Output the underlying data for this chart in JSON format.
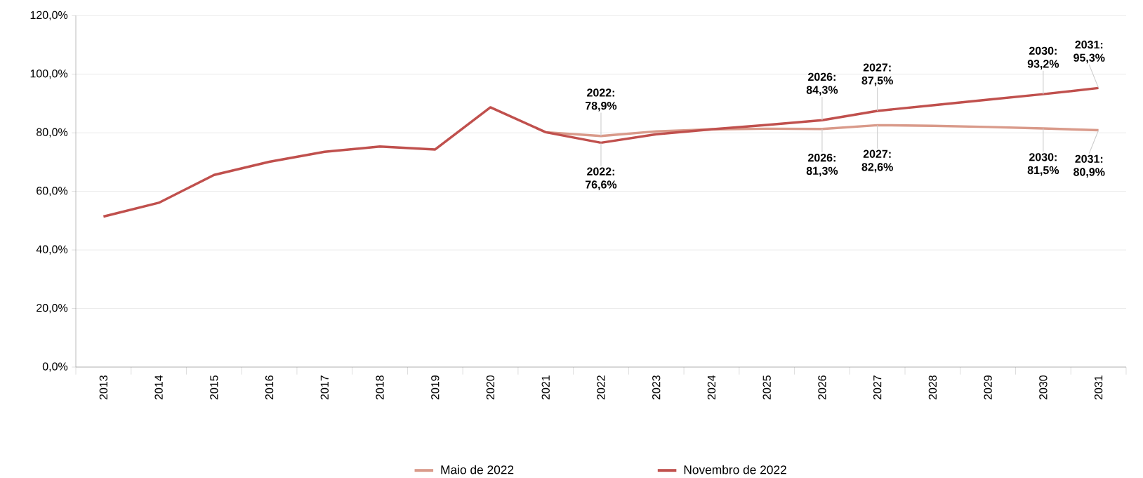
{
  "chart_data": {
    "type": "line",
    "categories": [
      "2013",
      "2014",
      "2015",
      "2016",
      "2017",
      "2018",
      "2019",
      "2020",
      "2021",
      "2022",
      "2023",
      "2024",
      "2025",
      "2026",
      "2027",
      "2028",
      "2029",
      "2030",
      "2031"
    ],
    "ylim": [
      0,
      120
    ],
    "yticks": [
      {
        "value": 0,
        "label": "0,0%"
      },
      {
        "value": 20,
        "label": "20,0%"
      },
      {
        "value": 40,
        "label": "40,0%"
      },
      {
        "value": 60,
        "label": "60,0%"
      },
      {
        "value": 80,
        "label": "80,0%"
      },
      {
        "value": 100,
        "label": "100,0%"
      },
      {
        "value": 120,
        "label": "120,0%"
      }
    ],
    "grid": "y",
    "legend": "bottom",
    "marker": "none",
    "line_style": "solid",
    "series": [
      {
        "name": "Maio de 2022",
        "color": "#d99a8a",
        "values": [
          null,
          null,
          null,
          null,
          null,
          null,
          null,
          null,
          80.2,
          78.9,
          80.5,
          81.2,
          81.4,
          81.3,
          82.6,
          82.4,
          82.0,
          81.5,
          80.9
        ]
      },
      {
        "name": "Novembro de 2022",
        "color": "#c0504d",
        "values": [
          51.4,
          56.1,
          65.6,
          70.1,
          73.5,
          75.3,
          74.3,
          88.7,
          80.2,
          76.6,
          79.5,
          81.2,
          82.7,
          84.3,
          87.5,
          89.4,
          91.3,
          93.2,
          95.3
        ]
      }
    ],
    "annotations": [
      {
        "text": "2022: 78,9%",
        "x": "2022",
        "y": 78.9
      },
      {
        "text": "2022: 76,6%",
        "x": "2022",
        "y": 76.6
      },
      {
        "text": "2026: 84,3%",
        "x": "2026",
        "y": 84.3
      },
      {
        "text": "2027: 87,5%",
        "x": "2027",
        "y": 87.5
      },
      {
        "text": "2030: 93,2%",
        "x": "2030",
        "y": 93.2
      },
      {
        "text": "2031: 95,3%",
        "x": "2031",
        "y": 95.3
      },
      {
        "text": "2026: 81,3%",
        "x": "2026",
        "y": 81.3
      },
      {
        "text": "2027: 82,6%",
        "x": "2027",
        "y": 82.6
      },
      {
        "text": "2030: 81,5%",
        "x": "2030",
        "y": 81.5
      },
      {
        "text": "2031: 80,9%",
        "x": "2031",
        "y": 80.9
      }
    ]
  }
}
